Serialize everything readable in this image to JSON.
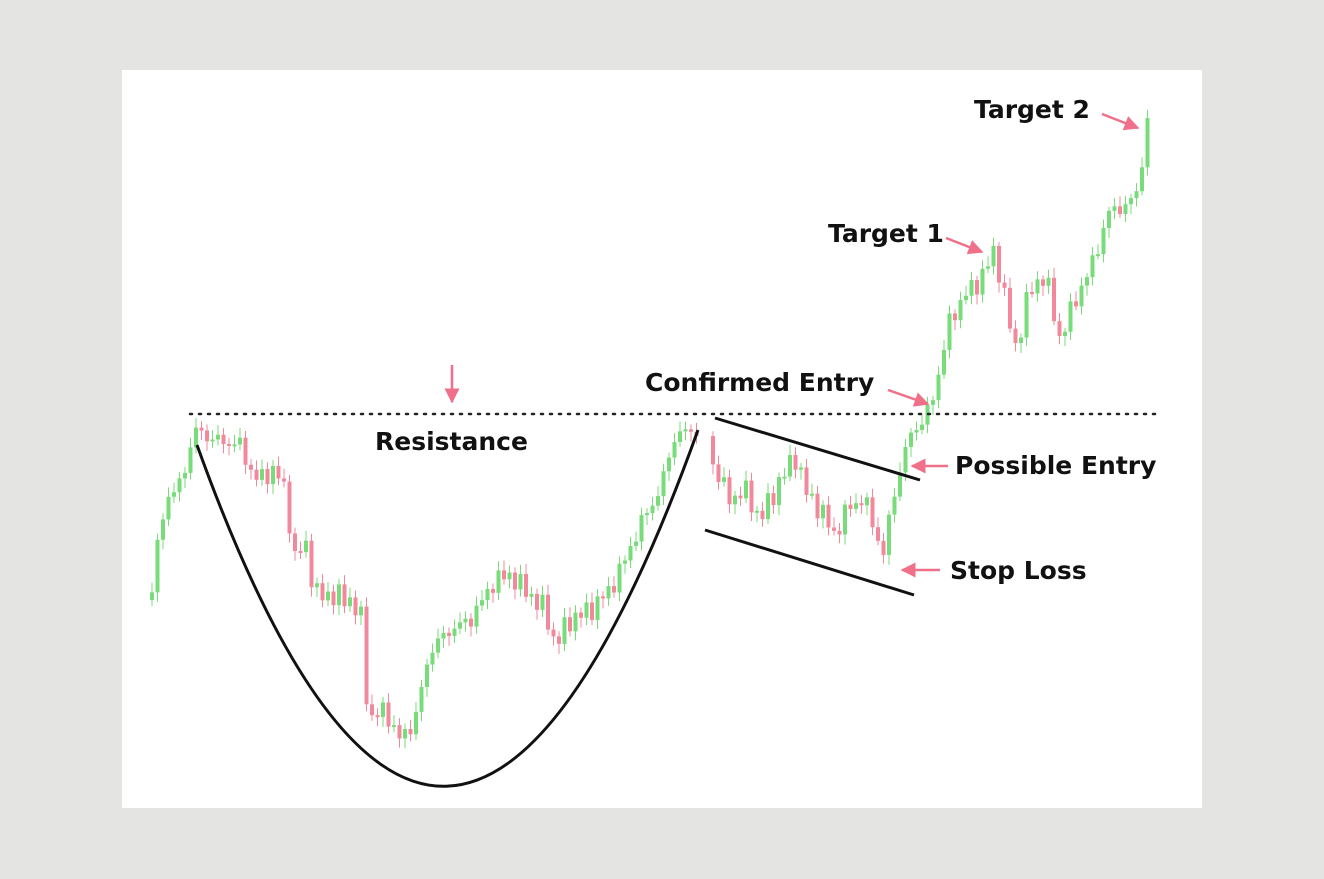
{
  "labels": {
    "target_2": "Target 2",
    "target_1": "Target 1",
    "confirmed_entry": "Confirmed Entry",
    "resistance": "Resistance",
    "possible_entry": "Possible Entry",
    "stop_loss": "Stop Loss"
  }
}
